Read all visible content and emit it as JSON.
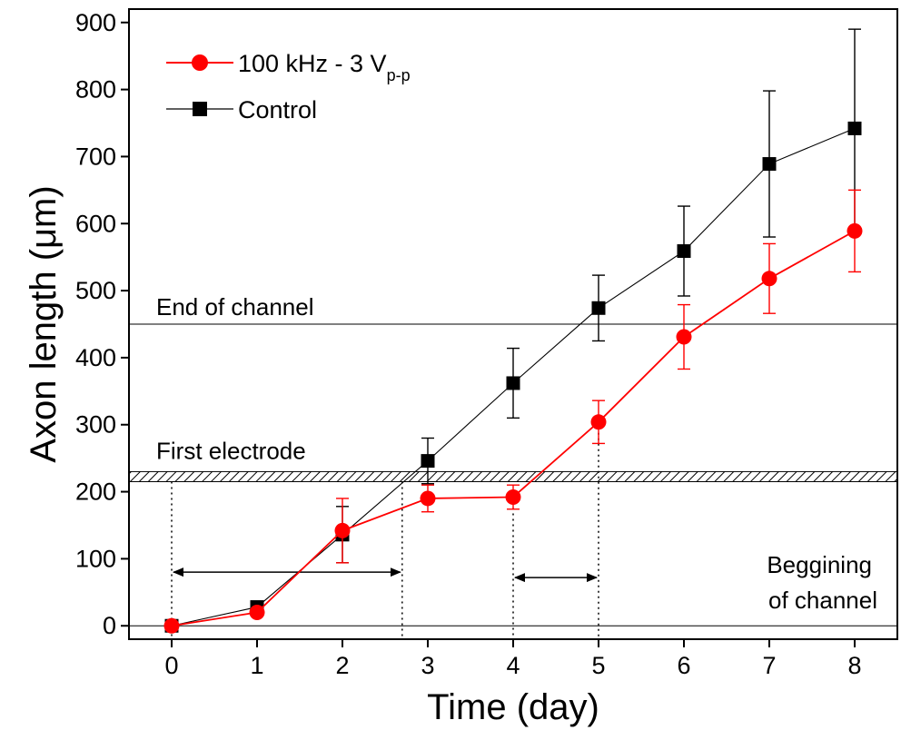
{
  "chart_data": {
    "type": "line",
    "xlabel": "Time (day)",
    "ylabel": "Axon length (μm)",
    "xlim": [
      -0.5,
      8.5
    ],
    "ylim": [
      -20,
      920
    ],
    "x_ticks": [
      0,
      1,
      2,
      3,
      4,
      5,
      6,
      7,
      8
    ],
    "y_ticks": [
      0,
      100,
      200,
      300,
      400,
      500,
      600,
      700,
      800,
      900
    ],
    "grid": false,
    "legend_position": "top-left",
    "series": [
      {
        "name_main": "100 kHz - 3 V",
        "name_sub": "p-p",
        "color": "#ff0000",
        "marker": "circle",
        "x": [
          0,
          1,
          2,
          3,
          4,
          5,
          6,
          7,
          8
        ],
        "y": [
          0,
          20,
          142,
          190,
          192,
          304,
          431,
          518,
          589
        ],
        "error": [
          0,
          0,
          48,
          20,
          18,
          32,
          48,
          52,
          61
        ]
      },
      {
        "name": "Control",
        "color": "#000000",
        "marker": "square",
        "x": [
          0,
          1,
          2,
          3,
          4,
          5,
          6,
          7,
          8
        ],
        "y": [
          0,
          28,
          136,
          246,
          362,
          474,
          559,
          689,
          742
        ],
        "error": [
          0,
          0,
          42,
          34,
          52,
          49,
          67,
          109,
          148
        ]
      }
    ],
    "reference_lines": {
      "end_of_channel": {
        "label": "End of channel",
        "y": 450
      },
      "first_electrode": {
        "label": "First electrode",
        "y_low": 215,
        "y_high": 230
      },
      "beginning_of_channel": {
        "label_line1": "Beggining",
        "label_line2": "of channel",
        "y": 0
      }
    },
    "vertical_markers": [
      {
        "x": 0,
        "y": 215
      },
      {
        "x": 2.7,
        "y": 215
      },
      {
        "x": 4,
        "y": 192
      },
      {
        "x": 5,
        "y": 304
      }
    ],
    "interval_arrows": [
      {
        "x_start": 0,
        "x_end": 2.7,
        "y": 80
      },
      {
        "x_start": 4,
        "x_end": 5,
        "y": 72
      }
    ]
  }
}
